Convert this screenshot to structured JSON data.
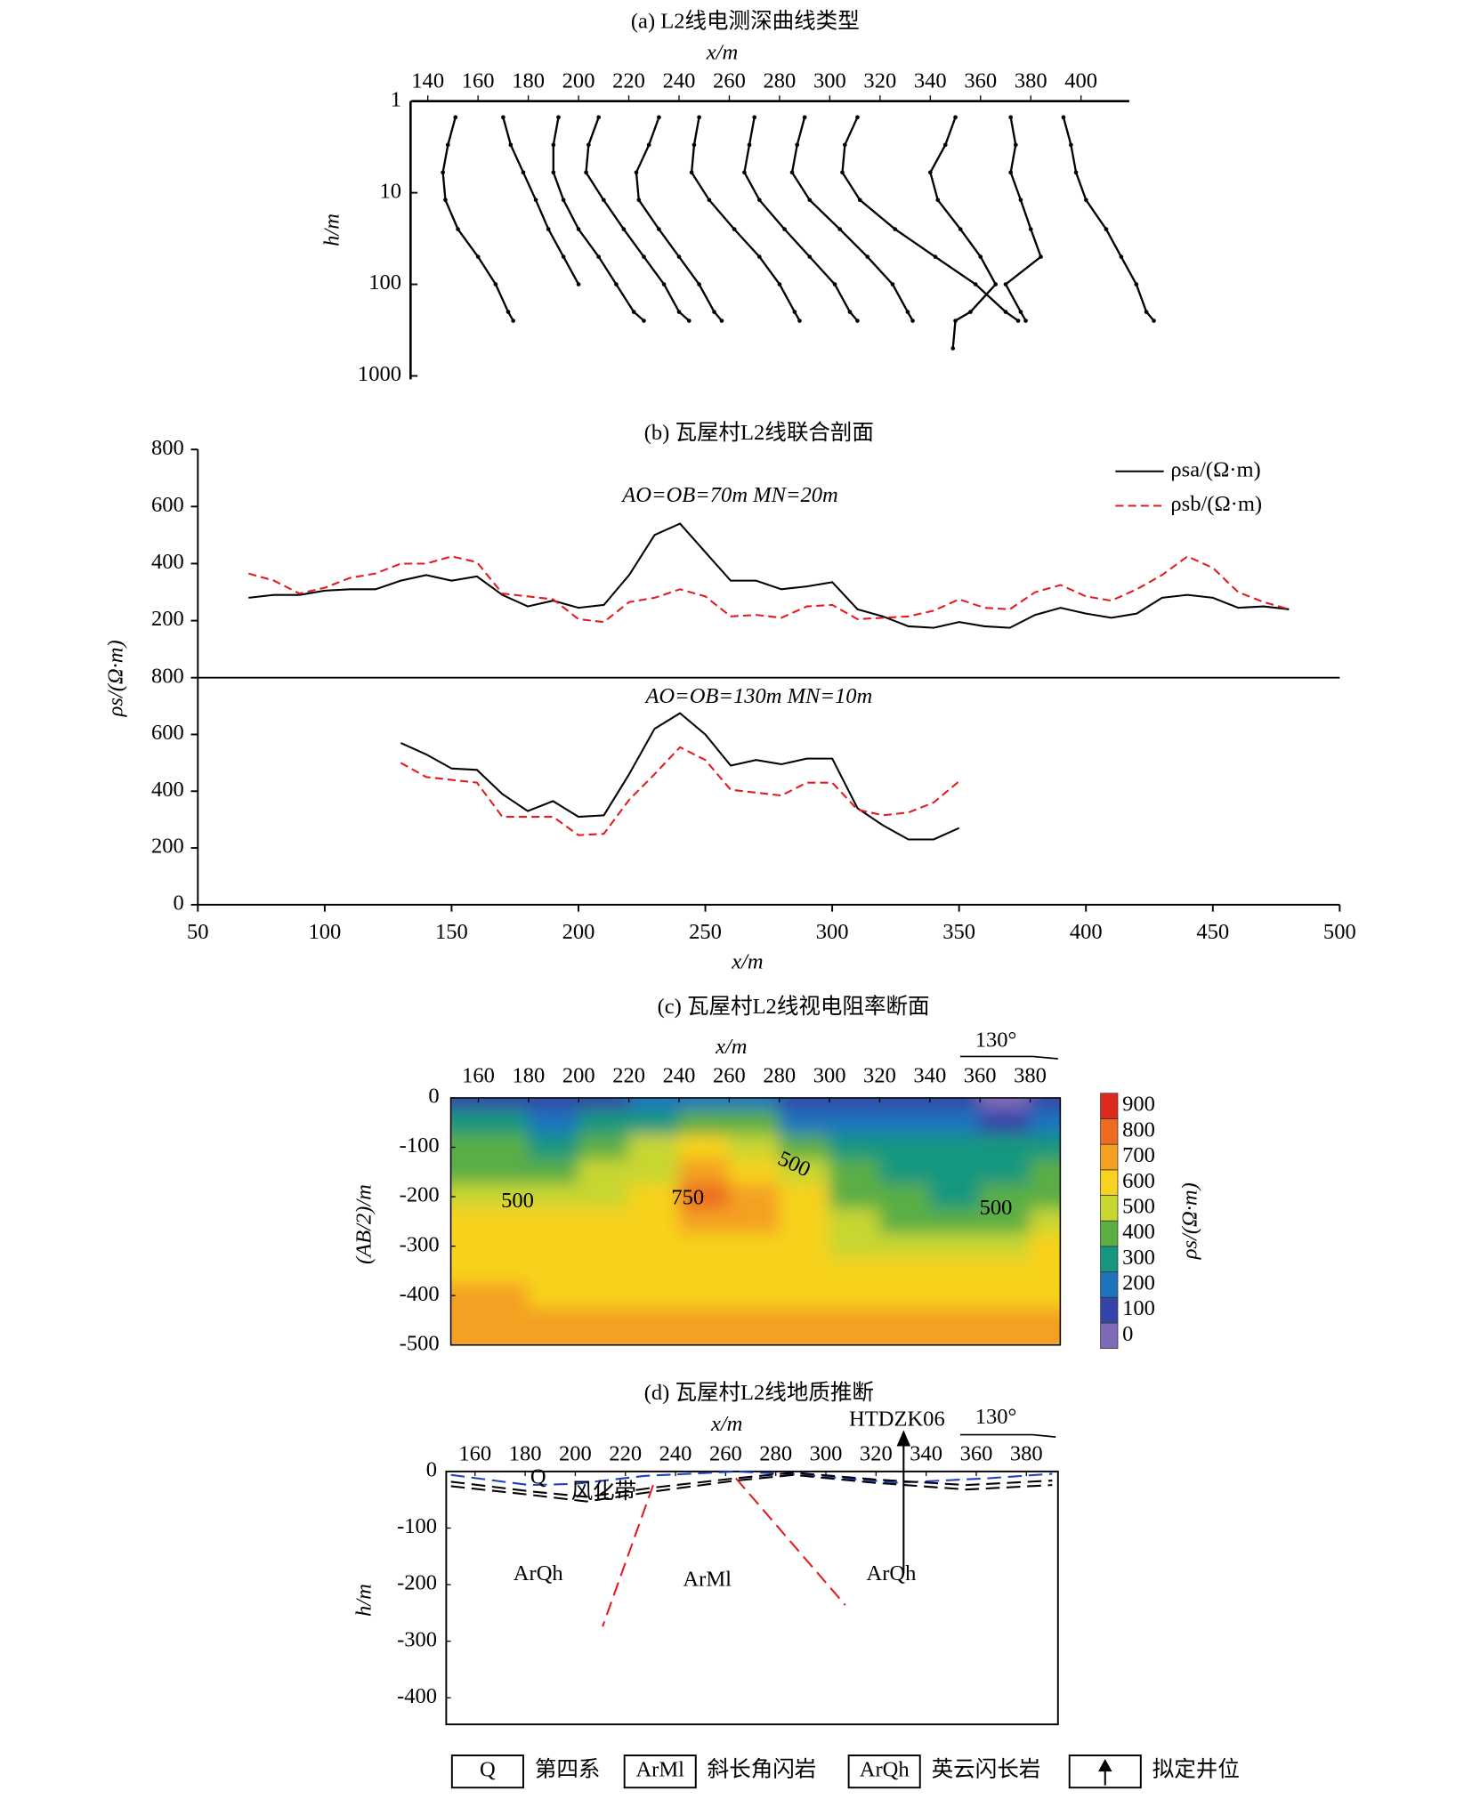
{
  "chart_data": [
    {
      "type": "curves",
      "title": "(a) L2线电测深曲线类型",
      "x_label": "x/m",
      "y_label": "h/m",
      "xlim": [
        133.6,
        419.2
      ],
      "xticks": [
        140,
        160,
        180,
        200,
        220,
        240,
        260,
        280,
        300,
        320,
        340,
        360,
        380,
        400
      ],
      "ylim": [
        1,
        1000
      ],
      "yticks": [
        1,
        10,
        100,
        1000
      ],
      "ylog": true,
      "yreverse": true,
      "color": "#000000",
      "series": [
        {
          "x": [
            151,
            148,
            146,
            147,
            152,
            160,
            167,
            172,
            174
          ],
          "values": [
            1.5,
            3,
            6,
            12,
            25,
            50,
            100,
            200,
            250
          ]
        },
        {
          "x": [
            170,
            173,
            178,
            183,
            188,
            194,
            200
          ],
          "values": [
            1.5,
            3,
            6,
            12,
            25,
            50,
            100
          ]
        },
        {
          "x": [
            192,
            190,
            190,
            194,
            200,
            208,
            215,
            222,
            226
          ],
          "values": [
            1.5,
            3,
            6,
            12,
            25,
            50,
            100,
            200,
            250
          ]
        },
        {
          "x": [
            208,
            204,
            203,
            210,
            218,
            226,
            234,
            240,
            244
          ],
          "values": [
            1.5,
            3,
            6,
            12,
            25,
            50,
            100,
            200,
            250
          ]
        },
        {
          "x": [
            232,
            228,
            223,
            224,
            232,
            240,
            248,
            254,
            257
          ],
          "values": [
            1.5,
            3,
            6,
            12,
            25,
            50,
            100,
            200,
            250
          ]
        },
        {
          "x": [
            248,
            246,
            245,
            252,
            262,
            272,
            280,
            286,
            288
          ],
          "values": [
            1.5,
            3,
            6,
            12,
            25,
            50,
            100,
            200,
            250
          ]
        },
        {
          "x": [
            270,
            268,
            266,
            272,
            282,
            292,
            302,
            308,
            311
          ],
          "values": [
            1.5,
            3,
            6,
            12,
            25,
            50,
            100,
            200,
            250
          ]
        },
        {
          "x": [
            290,
            287,
            285,
            292,
            304,
            315,
            325,
            331,
            333
          ],
          "values": [
            1.5,
            3,
            6,
            12,
            25,
            50,
            100,
            200,
            250
          ]
        },
        {
          "x": [
            311,
            306,
            305,
            312,
            326,
            342,
            358,
            370,
            375
          ],
          "values": [
            1.5,
            3,
            6,
            12,
            25,
            50,
            100,
            200,
            250
          ]
        },
        {
          "x": [
            350,
            346,
            340,
            343,
            352,
            360,
            366,
            356,
            350,
            349
          ],
          "values": [
            1.5,
            3,
            6,
            12,
            25,
            50,
            100,
            200,
            250,
            500
          ]
        },
        {
          "x": [
            372,
            374,
            372,
            376,
            380,
            384,
            370,
            376,
            378
          ],
          "values": [
            1.5,
            3,
            6,
            12,
            25,
            50,
            100,
            200,
            250
          ]
        },
        {
          "x": [
            393,
            396,
            398,
            402,
            410,
            416,
            422,
            426,
            429
          ],
          "values": [
            1.5,
            3,
            6,
            12,
            25,
            50,
            100,
            200,
            250
          ]
        }
      ]
    },
    {
      "type": "profile",
      "title": "(b) 瓦屋村L2线联合剖面",
      "x_label": "x/m",
      "y_label": "ρs/(Ω·m)",
      "xlim": [
        50,
        500
      ],
      "xticks": [
        50,
        100,
        150,
        200,
        250,
        300,
        350,
        400,
        450,
        500
      ],
      "legend": [
        {
          "name": "ρsa/(Ω·m)",
          "color": "#000000",
          "dashed": false
        },
        {
          "name": "ρsb/(Ω·m)",
          "color": "#e41a1c",
          "dashed": true
        }
      ],
      "panels": [
        {
          "annotation": "AO=OB=70m MN=20m",
          "ylim": [
            0,
            800
          ],
          "yticks": [
            200,
            400,
            600,
            800
          ],
          "x": [
            70,
            80,
            90,
            100,
            110,
            120,
            130,
            140,
            150,
            160,
            170,
            180,
            190,
            200,
            210,
            220,
            230,
            240,
            250,
            260,
            270,
            280,
            290,
            300,
            310,
            320,
            330,
            340,
            350,
            360,
            370,
            380,
            390,
            400,
            410,
            420,
            430,
            440,
            450,
            460,
            470,
            480
          ],
          "series": [
            {
              "values": [
                280,
                290,
                290,
                305,
                310,
                310,
                340,
                360,
                340,
                355,
                290,
                250,
                270,
                245,
                255,
                360,
                500,
                540,
                440,
                340,
                340,
                310,
                320,
                335,
                240,
                215,
                180,
                175,
                195,
                180,
                175,
                220,
                245,
                225,
                210,
                225,
                280,
                290,
                280,
                245,
                250,
                240
              ]
            },
            {
              "values": [
                365,
                340,
                295,
                315,
                350,
                365,
                400,
                400,
                425,
                405,
                295,
                285,
                275,
                205,
                195,
                265,
                280,
                310,
                285,
                215,
                220,
                210,
                250,
                255,
                205,
                210,
                215,
                235,
                275,
                245,
                240,
                300,
                325,
                285,
                270,
                310,
                360,
                425,
                385,
                300,
                265,
                240
              ]
            }
          ]
        },
        {
          "annotation": "AO=OB=130m MN=10m",
          "ylim": [
            0,
            800
          ],
          "yticks": [
            0,
            200,
            400,
            600,
            800
          ],
          "x": [
            130,
            140,
            150,
            160,
            170,
            180,
            190,
            200,
            210,
            220,
            230,
            240,
            250,
            260,
            270,
            280,
            290,
            300,
            310,
            320,
            330,
            340,
            350
          ],
          "series": [
            {
              "values": [
                570,
                530,
                480,
                475,
                390,
                330,
                365,
                310,
                315,
                460,
                620,
                675,
                600,
                490,
                510,
                495,
                515,
                515,
                340,
                280,
                230,
                230,
                270
              ]
            },
            {
              "values": [
                500,
                450,
                440,
                430,
                310,
                310,
                310,
                245,
                250,
                370,
                460,
                555,
                510,
                405,
                395,
                385,
                430,
                430,
                335,
                315,
                325,
                360,
                435
              ]
            }
          ]
        }
      ]
    },
    {
      "type": "contour",
      "title": "(c) 瓦屋村L2线视电阻率断面",
      "x_label": "x/m",
      "y_label": "(AB/2)/m",
      "annotation": "130°",
      "xlim": [
        149,
        392
      ],
      "xticks": [
        160,
        180,
        200,
        220,
        240,
        260,
        280,
        300,
        320,
        340,
        360,
        380
      ],
      "ylim": [
        -500,
        0
      ],
      "yticks": [
        0,
        -100,
        -200,
        -300,
        -400,
        -500
      ],
      "grid_x": [
        150,
        170,
        190,
        210,
        230,
        250,
        270,
        290,
        310,
        330,
        350,
        370,
        390
      ],
      "grid_y": [
        0,
        -50,
        -100,
        -150,
        -200,
        -250,
        -300,
        -350,
        -400,
        -450,
        -500
      ],
      "z": [
        [
          150,
          150,
          150,
          150,
          200,
          250,
          200,
          150,
          100,
          100,
          100,
          50,
          100
        ],
        [
          300,
          300,
          250,
          300,
          350,
          450,
          400,
          250,
          200,
          200,
          200,
          150,
          200
        ],
        [
          400,
          400,
          350,
          400,
          500,
          600,
          550,
          400,
          300,
          300,
          300,
          300,
          350
        ],
        [
          450,
          450,
          450,
          500,
          550,
          700,
          650,
          500,
          400,
          350,
          350,
          350,
          400
        ],
        [
          550,
          550,
          550,
          550,
          650,
          800,
          750,
          600,
          450,
          400,
          350,
          400,
          450
        ],
        [
          600,
          600,
          600,
          600,
          650,
          750,
          700,
          600,
          500,
          450,
          450,
          450,
          550
        ],
        [
          650,
          650,
          650,
          650,
          650,
          650,
          650,
          600,
          550,
          550,
          550,
          550,
          600
        ],
        [
          650,
          650,
          650,
          650,
          650,
          650,
          650,
          650,
          650,
          600,
          600,
          600,
          650
        ],
        [
          700,
          700,
          650,
          650,
          650,
          650,
          650,
          650,
          650,
          650,
          650,
          650,
          650
        ],
        [
          700,
          700,
          700,
          700,
          700,
          700,
          700,
          700,
          700,
          700,
          700,
          700,
          700
        ],
        [
          750,
          700,
          700,
          700,
          700,
          700,
          700,
          700,
          700,
          700,
          700,
          700,
          750
        ]
      ],
      "contour_labels": [
        "500",
        "750",
        "500",
        "500"
      ],
      "colorbar": {
        "label": "ρs/(Ω·m)",
        "levels": [
          0,
          100,
          200,
          300,
          400,
          500,
          600,
          700,
          800,
          900
        ],
        "colors": [
          "#7d6bb6",
          "#3346a8",
          "#1f73bd",
          "#17977f",
          "#5aae44",
          "#c8d631",
          "#f7d21e",
          "#f4a020",
          "#ec6c22",
          "#de2a1c"
        ]
      }
    },
    {
      "type": "section",
      "title": "(d) 瓦屋村L2线地质推断",
      "x_label": "x/m",
      "y_label": "h/m",
      "annotation": "130°",
      "well_name": "HTDZK06",
      "xlim": [
        148.5,
        392.6
      ],
      "xticks": [
        160,
        180,
        200,
        220,
        240,
        260,
        280,
        300,
        320,
        340,
        360,
        380
      ],
      "ylim": [
        -447,
        0
      ],
      "yticks": [
        0,
        -100,
        -200,
        -300,
        -400
      ],
      "lines": [
        {
          "color": "#1f3fbf",
          "dashed": true,
          "x": [
            150.4,
            181.6,
            199.9,
            227.4,
            264.1,
            291.7,
            328.3,
            365.0,
            390.3
          ],
          "values": [
            -6,
            -24,
            -22,
            -8,
            0,
            -6,
            -20,
            -12,
            -4
          ]
        },
        {
          "color": "#000000",
          "dashed": true,
          "x": [
            150.4,
            181.6,
            204.5,
            232.0,
            264.1,
            287.1,
            319.2,
            355.9,
            390.3
          ],
          "values": [
            -18,
            -35,
            -45,
            -28,
            -12,
            -2,
            -14,
            -24,
            -16
          ]
        },
        {
          "color": "#000000",
          "dashed": true,
          "x": [
            150.4,
            181.6,
            204.5,
            232.0,
            264.1,
            287.1,
            319.2,
            355.9,
            390.3
          ],
          "values": [
            -26,
            -41,
            -53,
            -35,
            -16,
            -6,
            -20,
            -32,
            -24
          ]
        },
        {
          "color": "#e41a1c",
          "dashed": true,
          "x": [
            231.1,
            210.9
          ],
          "values": [
            -24,
            -274
          ]
        },
        {
          "color": "#e41a1c",
          "dashed": true,
          "x": [
            264.1,
            307.7
          ],
          "values": [
            -12,
            -236
          ]
        }
      ],
      "well": {
        "x": [
          331,
          331
        ],
        "values": [
          -180,
          0
        ]
      },
      "labels": [
        "Q",
        "风化带",
        "ArQh",
        "ArMl",
        "ArQh"
      ],
      "legend": [
        {
          "code": "Q",
          "name": "第四系"
        },
        {
          "code": "ArMl",
          "name": "斜长角闪岩"
        },
        {
          "code": "ArQh",
          "name": "英云闪长岩"
        },
        {
          "name": "拟定井位"
        }
      ]
    }
  ]
}
